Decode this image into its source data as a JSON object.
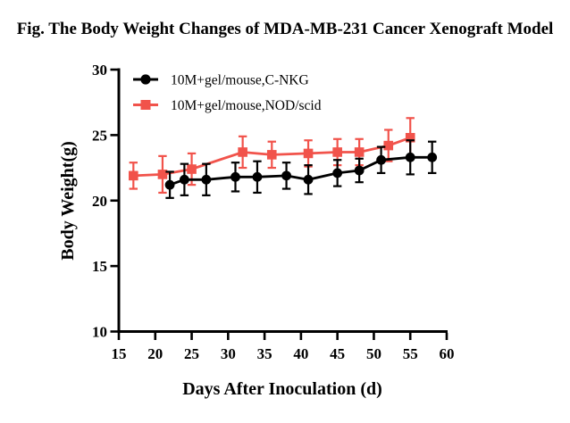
{
  "title": "Fig. The Body Weight Changes of MDA-MB-231 Cancer Xenograft Model",
  "chart_data": {
    "type": "line",
    "title": "Fig. The Body Weight Changes of MDA-MB-231 Cancer Xenograft Model",
    "xlabel": "Days After Inoculation (d)",
    "ylabel": "Body Weight(g)",
    "xlim": [
      15,
      60
    ],
    "ylim": [
      10,
      30
    ],
    "xticks": [
      15,
      20,
      25,
      30,
      35,
      40,
      45,
      50,
      55,
      60
    ],
    "yticks": [
      10,
      15,
      20,
      25,
      30
    ],
    "grid": false,
    "legend_position": "top-left-inside",
    "error_bars": "symmetric vertical bars with caps",
    "series": [
      {
        "name": "10M+gel/mouse,NOD/scid",
        "color": "#F1534B",
        "marker": "square",
        "legend_row": 1,
        "x": [
          17,
          21,
          25,
          32,
          36,
          41,
          45,
          48,
          52,
          55
        ],
        "y": [
          21.9,
          22.0,
          22.4,
          23.7,
          23.5,
          23.6,
          23.7,
          23.7,
          24.2,
          24.8
        ],
        "yerr": [
          1.0,
          1.4,
          1.2,
          1.2,
          1.0,
          1.0,
          1.0,
          1.0,
          1.2,
          1.5
        ]
      },
      {
        "name": "10M+gel/mouse,C-NKG",
        "color": "#000000",
        "marker": "circle",
        "legend_row": 0,
        "x": [
          22,
          24,
          27,
          31,
          34,
          38,
          41,
          45,
          48,
          51,
          55,
          58
        ],
        "y": [
          21.2,
          21.6,
          21.6,
          21.8,
          21.8,
          21.9,
          21.6,
          22.1,
          22.3,
          23.1,
          23.3,
          23.3
        ],
        "yerr": [
          1.0,
          1.2,
          1.2,
          1.1,
          1.2,
          1.0,
          1.1,
          1.0,
          0.9,
          1.0,
          1.3,
          1.2
        ]
      }
    ]
  }
}
